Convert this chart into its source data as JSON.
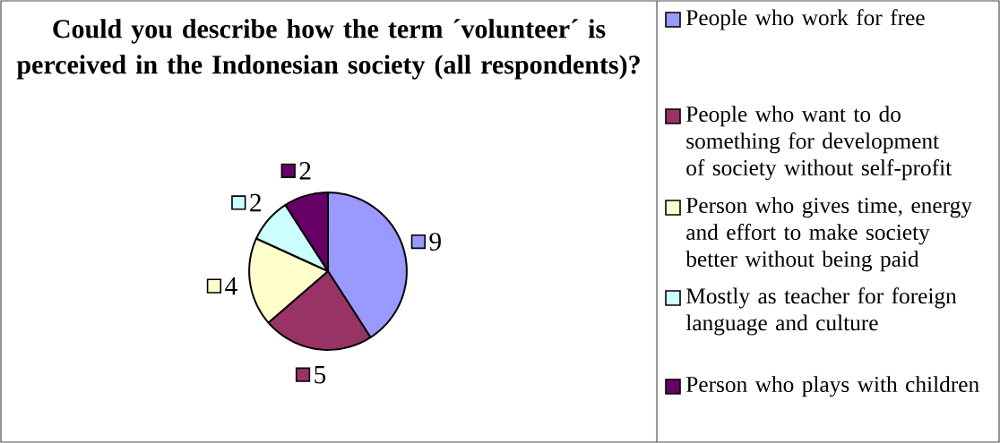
{
  "chart_data": {
    "type": "pie",
    "title": "Could you describe how the term ´volunteer´ is perceived in the Indonesian society (all respondents)?",
    "categories": [
      "People who work for free",
      "People who want to do something for development of society without self-profit",
      "Person who gives time, energy and effort to make society better without being paid",
      "Mostly as teacher for foreign language and culture",
      "Person who plays with children"
    ],
    "values": [
      9,
      5,
      4,
      2,
      2
    ],
    "colors": [
      "#9999ff",
      "#993366",
      "#ffffcc",
      "#ccffff",
      "#660066"
    ],
    "data_labels": true,
    "legend": "right"
  }
}
